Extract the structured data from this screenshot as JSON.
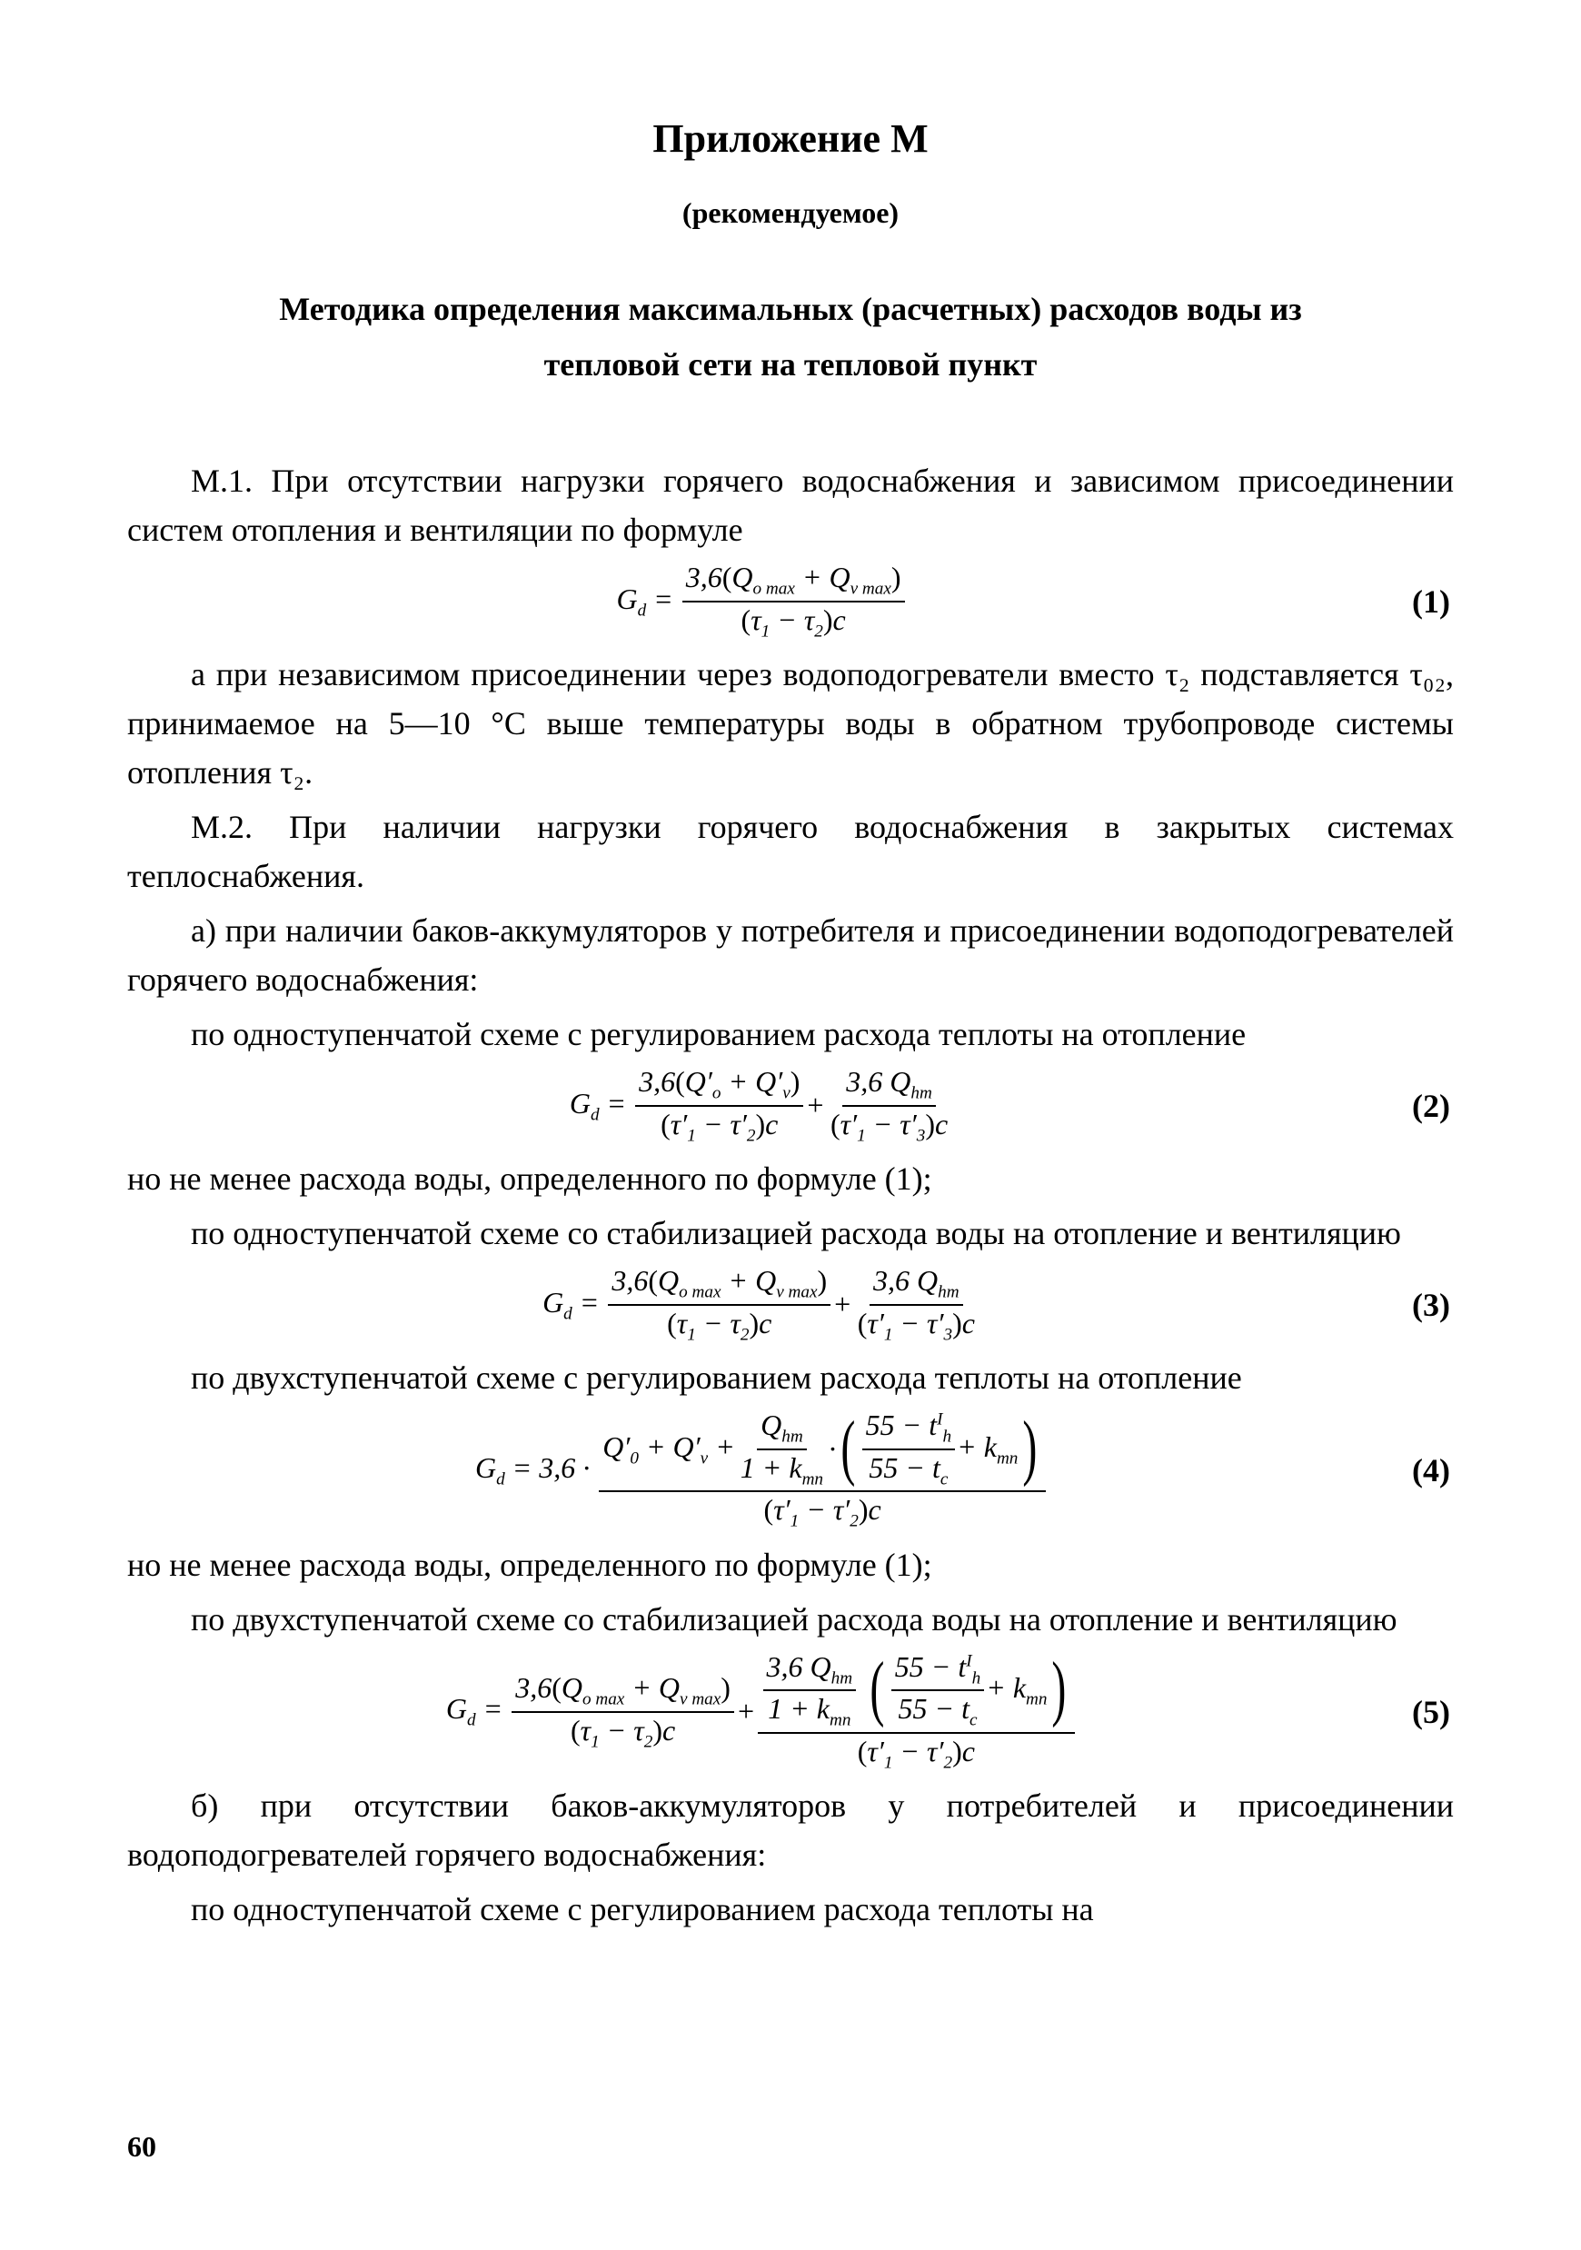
{
  "page_number": "60",
  "title": "Приложение М",
  "subtitle": "(рекомендуемое)",
  "section_title_line1": "Методика определения максимальных (расчетных) расходов воды из",
  "section_title_line2": "тепловой сети на тепловой пункт",
  "p_m1": "М.1. При отсутствии нагрузки горячего водоснабжения и зависимом присоединении систем отопления и вентиляции по формуле",
  "p_after_eq1": "а при независимом присоединении через водоподогреватели вместо τ₂ подставляется τ₀₂, принимаемое на 5—10 °С выше температуры воды в обратном трубопроводе системы отопления τ₂.",
  "p_m2": "М.2. При наличии нагрузки горячего водоснабжения в закрытых системах теплоснабжения.",
  "p_a": "а) при наличии баков-аккумуляторов у потребителя и присоединении водоподогревателей горячего водоснабжения:",
  "p_one_stage_reg": "по одноступенчатой схеме с регулированием расхода теплоты на отопление",
  "p_not_less_1": "но не менее расхода воды, определенного по формуле (1);",
  "p_one_stage_stab": "по одноступенчатой схеме со стабилизацией расхода воды на отопление и вентиляцию",
  "p_two_stage_reg": "по двухступенчатой схеме с регулированием расхода теплоты на отопление",
  "p_not_less_1b": "но не менее расхода воды, определенного по формуле (1);",
  "p_two_stage_stab": "по двухступенчатой схеме со стабилизацией расхода воды на отопление и вентиляцию",
  "p_b": "б) при отсутствии баков-аккумуляторов у потребителей и присоединении водоподогревателей горячего водоснабжения:",
  "p_last": "по одноступенчатой схеме с регулированием расхода теплоты на",
  "eq": {
    "1": {
      "num": "(1)",
      "lhs": "G<sub>d</sub> =",
      "frac_num": "3,6<span class='rm'>(</span>Q<sub>o max</sub> + Q<sub>v max</sub><span class='rm'>)</span>",
      "frac_den": "<span class='rm'>(</span>τ<sub>1</sub> − τ<sub>2</sub><span class='rm'>)</span>c"
    },
    "2": {
      "num": "(2)",
      "lhs": "G<sub>d</sub> =",
      "frac1_num": "3,6<span class='rm'>(</span>Q′<sub>o</sub> + Q′<sub>v</sub><span class='rm'>)</span>",
      "frac1_den": "<span class='rm'>(</span>τ′<sub>1</sub> − τ′<sub>2</sub><span class='rm'>)</span>c",
      "plus": " + ",
      "frac2_num": "3,6 Q<sub>hm</sub>",
      "frac2_den": "<span class='rm'>(</span>τ′<sub>1</sub> − τ′<sub>3</sub><span class='rm'>)</span>c"
    },
    "3": {
      "num": "(3)",
      "lhs": "G<sub>d</sub> =",
      "frac1_num": "3,6<span class='rm'>(</span>Q<sub>o max</sub> + Q<sub>v max</sub><span class='rm'>)</span>",
      "frac1_den": "<span class='rm'>(</span>τ<sub>1</sub> − τ<sub>2</sub><span class='rm'>)</span>c",
      "plus": " + ",
      "frac2_num": "3,6 Q<sub>hm</sub>",
      "frac2_den": "<span class='rm'>(</span>τ′<sub>1</sub> − τ′<sub>3</sub><span class='rm'>)</span>c"
    },
    "4": {
      "num": "(4)",
      "lhs": "G<sub>d</sub> = 3,6 ·",
      "big_num_left": "Q′<sub>0</sub> + Q′<sub>v</sub> + ",
      "inner_frac_num": "Q<sub>hm</sub>",
      "inner_frac_den": "1 + k<sub>mn</sub>",
      "dot": " · ",
      "paren_frac_num": "55 − t<sup>I</sup><sub>h</sub>",
      "paren_frac_den": "55 − t<sub>c</sub>",
      "plus_kmn": " + k<sub>mn</sub>",
      "big_den": "<span class='rm'>(</span>τ′<sub>1</sub> − τ′<sub>2</sub><span class='rm'>)</span>c"
    },
    "5": {
      "num": "(5)",
      "lhs": "G<sub>d</sub> =",
      "frac1_num": "3,6<span class='rm'>(</span>Q<sub>o max</sub> + Q<sub>v max</sub><span class='rm'>)</span>",
      "frac1_den": "<span class='rm'>(</span>τ<sub>1</sub> − τ<sub>2</sub><span class='rm'>)</span>c",
      "plus": " + ",
      "outer2_num_inner_num": "3,6 Q<sub>hm</sub>",
      "outer2_num_inner_den": "1 + k<sub>mn</sub>",
      "paren_frac_num": "55 − t<sup>I</sup><sub>h</sub>",
      "paren_frac_den": "55 − t<sub>c</sub>",
      "plus_kmn": " + k<sub>mn</sub>",
      "outer2_den": "<span class='rm'>(</span>τ′<sub>1</sub> − τ′<sub>2</sub><span class='rm'>)</span>c"
    }
  }
}
